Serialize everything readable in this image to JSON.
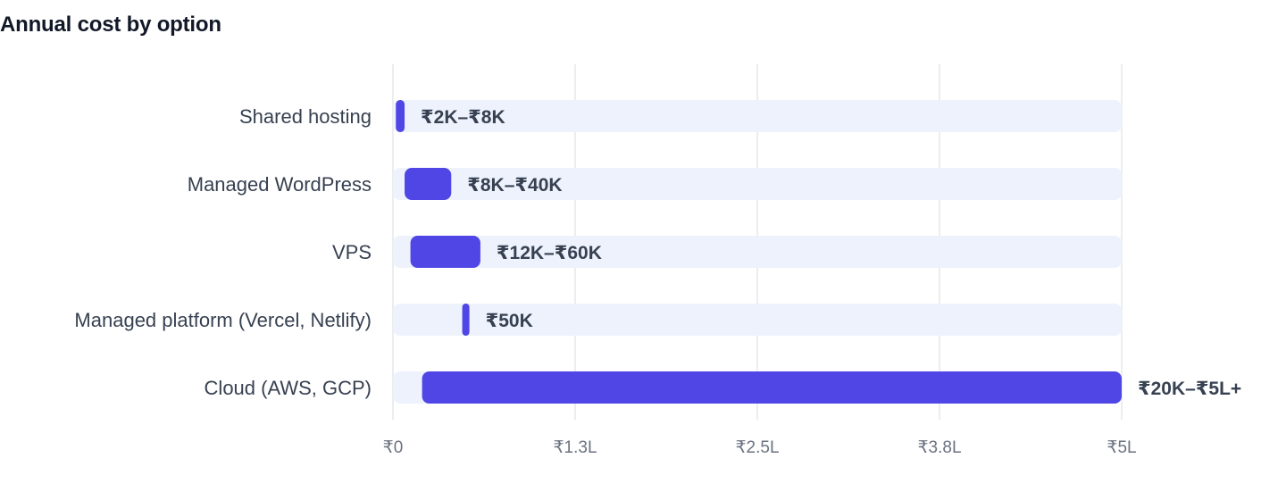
{
  "title": "Annual cost by option",
  "chart_data": {
    "type": "bar",
    "orientation": "horizontal",
    "title": "Annual cost by option",
    "xlabel": "",
    "ylabel": "",
    "xlim": [
      0,
      500000
    ],
    "x_ticks": [
      {
        "value": 0,
        "label": "₹0"
      },
      {
        "value": 125000,
        "label": "₹1.3L"
      },
      {
        "value": 250000,
        "label": "₹2.5L"
      },
      {
        "value": 375000,
        "label": "₹3.8L"
      },
      {
        "value": 500000,
        "label": "₹5L"
      }
    ],
    "grid": true,
    "legend": "none",
    "categories": [
      "Shared hosting",
      "Managed WordPress",
      "VPS",
      "Managed platform (Vercel, Netlify)",
      "Cloud (AWS, GCP)"
    ],
    "ranges": [
      {
        "low": 2000,
        "high": 8000,
        "label": "₹2K–₹8K"
      },
      {
        "low": 8000,
        "high": 40000,
        "label": "₹8K–₹40K"
      },
      {
        "low": 12000,
        "high": 60000,
        "label": "₹12K–₹60K"
      },
      {
        "low": 50000,
        "high": 50000,
        "label": "₹50K"
      },
      {
        "low": 20000,
        "high": 500000,
        "label": "₹20K–₹5L+"
      }
    ],
    "colors": {
      "bar": "#4f46e5",
      "track": "#eef2fd",
      "grid": "#e5e7eb"
    }
  }
}
